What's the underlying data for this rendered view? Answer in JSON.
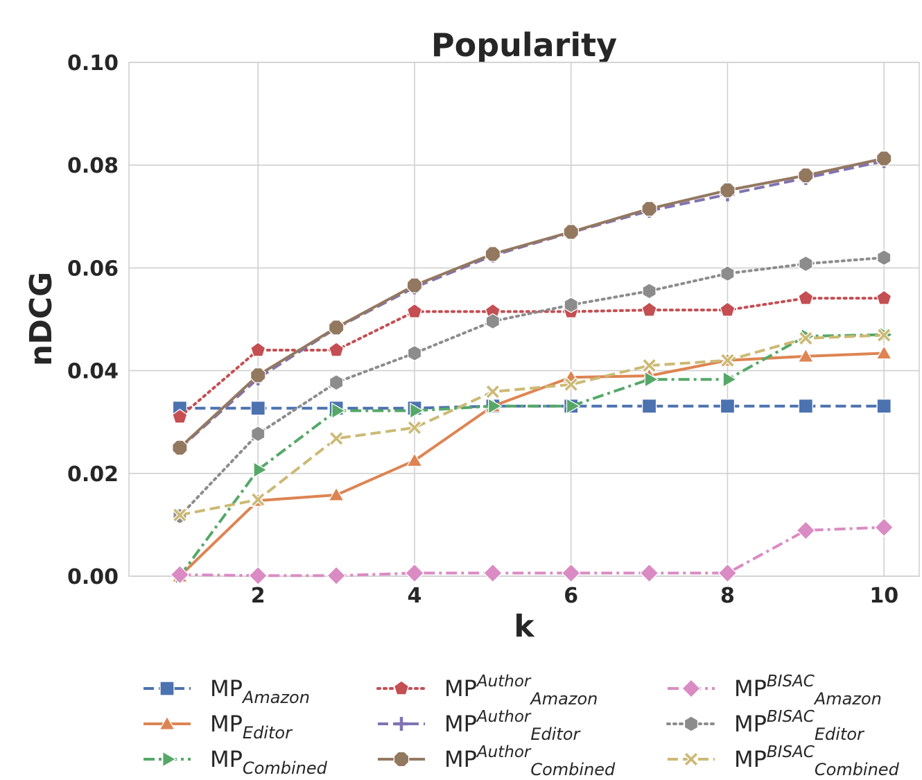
{
  "chart_data": {
    "type": "line",
    "title": "Popularity",
    "xlabel": "k",
    "ylabel": "nDCG",
    "xlim": [
      0.35,
      10.45
    ],
    "ylim": [
      0.0,
      0.1
    ],
    "x_ticks": [
      2,
      4,
      6,
      8,
      10
    ],
    "x_tick_labels": [
      "2",
      "4",
      "6",
      "8",
      "10"
    ],
    "y_ticks": [
      0.0,
      0.02,
      0.04,
      0.06,
      0.08,
      0.1
    ],
    "y_tick_labels": [
      "0.00",
      "0.02",
      "0.04",
      "0.06",
      "0.08",
      "0.10"
    ],
    "grid": true,
    "legend_position": "bottom",
    "x": [
      1,
      2,
      3,
      4,
      5,
      6,
      7,
      8,
      9,
      10
    ],
    "series": [
      {
        "name": "MP",
        "sub": "Amazon",
        "sup": "",
        "color": "#4c72b0",
        "marker": "square",
        "line": "dashed",
        "values": [
          0.0327,
          0.0327,
          0.0327,
          0.0327,
          0.0331,
          0.0331,
          0.0331,
          0.0331,
          0.0331,
          0.0331
        ]
      },
      {
        "name": "MP",
        "sub": "Editor",
        "sup": "",
        "color": "#dd8452",
        "marker": "triangle-up",
        "line": "solid",
        "values": [
          0.0,
          0.0147,
          0.0158,
          0.0225,
          0.0331,
          0.0387,
          0.039,
          0.042,
          0.0428,
          0.0434
        ]
      },
      {
        "name": "MP",
        "sub": "Combined",
        "sup": "",
        "color": "#55a868",
        "marker": "triangle-right",
        "line": "dashdot",
        "values": [
          0.0,
          0.0207,
          0.0322,
          0.0322,
          0.0331,
          0.0331,
          0.0383,
          0.0383,
          0.0467,
          0.047
        ]
      },
      {
        "name": "MP",
        "sub": "Amazon",
        "sup": "Author",
        "color": "#c44e52",
        "marker": "pentagon",
        "line": "dotted",
        "values": [
          0.031,
          0.044,
          0.044,
          0.0515,
          0.0515,
          0.0515,
          0.0518,
          0.0518,
          0.0541,
          0.0541
        ]
      },
      {
        "name": "MP",
        "sub": "Editor",
        "sup": "Author",
        "color": "#8172b3",
        "marker": "plus",
        "line": "dashed",
        "values": [
          0.0249,
          0.0385,
          0.0483,
          0.0562,
          0.0624,
          0.0669,
          0.0711,
          0.0743,
          0.0775,
          0.0808
        ]
      },
      {
        "name": "MP",
        "sub": "Combined",
        "sup": "Author",
        "color": "#937860",
        "marker": "octagon",
        "line": "solid",
        "values": [
          0.025,
          0.0391,
          0.0484,
          0.0566,
          0.0627,
          0.067,
          0.0715,
          0.0751,
          0.078,
          0.0813
        ]
      },
      {
        "name": "MP",
        "sub": "Amazon",
        "sup": "BISAC",
        "color": "#da8bc3",
        "marker": "diamond",
        "line": "dashdot",
        "values": [
          0.0003,
          0.0001,
          0.0001,
          0.0006,
          0.0006,
          0.0006,
          0.0006,
          0.0006,
          0.0089,
          0.0095
        ]
      },
      {
        "name": "MP",
        "sub": "Editor",
        "sup": "BISAC",
        "color": "#8c8c8c",
        "marker": "hexagon",
        "line": "dotted",
        "values": [
          0.0117,
          0.0277,
          0.0377,
          0.0434,
          0.0496,
          0.0528,
          0.0555,
          0.0589,
          0.0608,
          0.062
        ]
      },
      {
        "name": "MP",
        "sub": "Combined",
        "sup": "BISAC",
        "color": "#ccb974",
        "marker": "x",
        "line": "dashed",
        "values": [
          0.0119,
          0.0149,
          0.0268,
          0.0289,
          0.0359,
          0.0373,
          0.041,
          0.042,
          0.0463,
          0.0469
        ]
      }
    ]
  }
}
